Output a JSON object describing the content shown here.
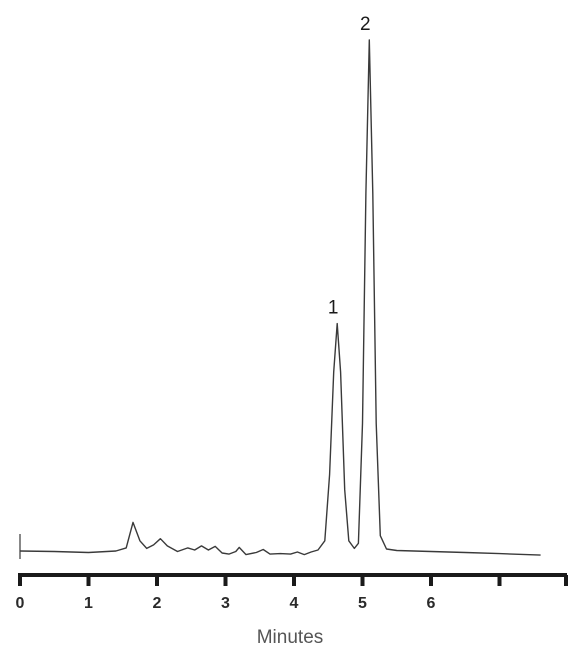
{
  "chart_data": {
    "type": "line",
    "xlabel": "Minutes",
    "ylabel": "",
    "title": "",
    "xlim": [
      0,
      7.6
    ],
    "ylim": [
      0,
      100
    ],
    "x_ticks": [
      {
        "value": 0,
        "label": "0"
      },
      {
        "value": 1,
        "label": "1"
      },
      {
        "value": 2,
        "label": "2"
      },
      {
        "value": 3,
        "label": "3"
      },
      {
        "value": 4,
        "label": "4"
      },
      {
        "value": 5,
        "label": "5"
      },
      {
        "value": 6,
        "label": "6"
      },
      {
        "value": 7,
        "label": ""
      }
    ],
    "peaks": [
      {
        "label": "1",
        "x": 4.63,
        "height": 44.5
      },
      {
        "label": "2",
        "x": 5.1,
        "height": 100
      }
    ],
    "series": [
      {
        "x": [
          0.0,
          0.5,
          1.0,
          1.4,
          1.55,
          1.65,
          1.75,
          1.85,
          1.95,
          2.05,
          2.15,
          2.3,
          2.45,
          2.55,
          2.65,
          2.75,
          2.85,
          2.95,
          3.05,
          3.15,
          3.2,
          3.3,
          3.45,
          3.55,
          3.65,
          3.8,
          3.95,
          4.05,
          4.15,
          4.25,
          4.35,
          4.45,
          4.52,
          4.58,
          4.63,
          4.68,
          4.74,
          4.8,
          4.88,
          4.94,
          5.0,
          5.05,
          5.1,
          5.15,
          5.2,
          5.26,
          5.35,
          5.5,
          6.0,
          6.5,
          7.0,
          7.6
        ],
        "y": [
          0.0,
          -0.1,
          -0.3,
          0.0,
          0.6,
          5.6,
          2.0,
          0.5,
          1.2,
          2.4,
          1.0,
          -0.1,
          0.6,
          0.2,
          1.0,
          0.2,
          0.9,
          -0.4,
          -0.6,
          -0.1,
          0.7,
          -0.7,
          -0.3,
          0.3,
          -0.6,
          -0.5,
          -0.6,
          -0.2,
          -0.7,
          -0.2,
          0.2,
          2.0,
          15.0,
          35.0,
          44.5,
          35.0,
          12.0,
          2.0,
          0.5,
          1.5,
          25.0,
          70.0,
          100.0,
          70.0,
          25.0,
          3.0,
          0.4,
          0.1,
          -0.1,
          -0.3,
          -0.5,
          -0.8
        ]
      }
    ]
  }
}
